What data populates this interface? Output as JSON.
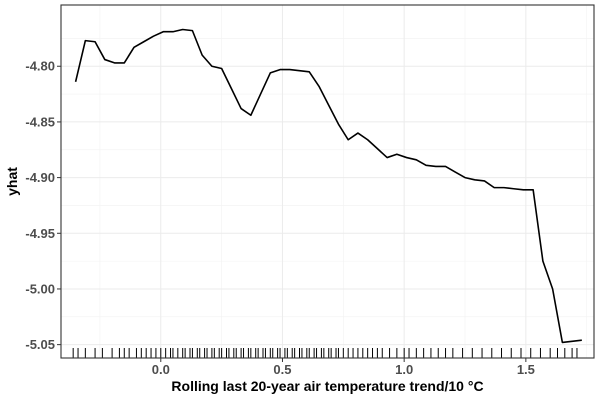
{
  "chart_data": {
    "type": "line",
    "title": "",
    "xlabel": "Rolling last 20-year air temperature trend/10 °C",
    "ylabel": "yhat",
    "xlim": [
      -0.41,
      1.78
    ],
    "ylim": [
      -5.062,
      -4.745
    ],
    "x_ticks": [
      0.0,
      0.5,
      1.0,
      1.5
    ],
    "x_tick_labels": [
      "0.0",
      "0.5",
      "1.0",
      "1.5"
    ],
    "y_ticks": [
      -4.8,
      -4.85,
      -4.9,
      -4.95,
      -5.0,
      -5.05
    ],
    "y_tick_labels": [
      "-4.80",
      "-4.85",
      "-4.90",
      "-4.95",
      "-5.00",
      "-5.05"
    ],
    "grid": true,
    "legend": "none",
    "series": [
      {
        "color": "#000000",
        "x": [
          -0.35,
          -0.31,
          -0.27,
          -0.23,
          -0.19,
          -0.15,
          -0.11,
          -0.07,
          -0.03,
          0.01,
          0.05,
          0.09,
          0.13,
          0.17,
          0.21,
          0.25,
          0.29,
          0.33,
          0.37,
          0.41,
          0.45,
          0.49,
          0.53,
          0.57,
          0.61,
          0.65,
          0.69,
          0.73,
          0.77,
          0.81,
          0.85,
          0.89,
          0.93,
          0.97,
          1.01,
          1.05,
          1.09,
          1.13,
          1.17,
          1.21,
          1.25,
          1.29,
          1.33,
          1.37,
          1.41,
          1.45,
          1.49,
          1.53,
          1.57,
          1.61,
          1.65,
          1.69,
          1.73
        ],
        "y": [
          -4.814,
          -4.777,
          -4.778,
          -4.794,
          -4.797,
          -4.797,
          -4.783,
          -4.778,
          -4.773,
          -4.769,
          -4.769,
          -4.767,
          -4.768,
          -4.79,
          -4.8,
          -4.802,
          -4.82,
          -4.838,
          -4.844,
          -4.825,
          -4.806,
          -4.803,
          -4.803,
          -4.804,
          -4.805,
          -4.818,
          -4.835,
          -4.852,
          -4.866,
          -4.86,
          -4.866,
          -4.874,
          -4.882,
          -4.879,
          -4.882,
          -4.884,
          -4.889,
          -4.89,
          -4.89,
          -4.895,
          -4.9,
          -4.902,
          -4.903,
          -4.909,
          -4.909,
          -4.91,
          -4.911,
          -4.911,
          -4.975,
          -5.0,
          -5.048,
          -5.047,
          -5.046
        ]
      }
    ],
    "rug": [
      -0.36,
      -0.34,
      -0.31,
      -0.27,
      -0.24,
      -0.2,
      -0.17,
      -0.15,
      -0.13,
      -0.1,
      -0.08,
      -0.06,
      -0.04,
      -0.02,
      0.0,
      0.02,
      0.04,
      0.05,
      0.07,
      0.09,
      0.1,
      0.12,
      0.13,
      0.15,
      0.16,
      0.18,
      0.19,
      0.21,
      0.22,
      0.24,
      0.25,
      0.27,
      0.28,
      0.3,
      0.31,
      0.33,
      0.34,
      0.36,
      0.37,
      0.39,
      0.4,
      0.42,
      0.43,
      0.45,
      0.46,
      0.48,
      0.49,
      0.51,
      0.52,
      0.54,
      0.55,
      0.57,
      0.58,
      0.6,
      0.61,
      0.63,
      0.64,
      0.66,
      0.67,
      0.69,
      0.7,
      0.72,
      0.73,
      0.75,
      0.77,
      0.79,
      0.81,
      0.83,
      0.85,
      0.87,
      0.89,
      0.91,
      0.94,
      0.97,
      1.0,
      1.02,
      1.05,
      1.08,
      1.11,
      1.14,
      1.17,
      1.2,
      1.24,
      1.28,
      1.32,
      1.36,
      1.4,
      1.44,
      1.48,
      1.52,
      1.56,
      1.6,
      1.63,
      1.66,
      1.69,
      1.71
    ]
  }
}
